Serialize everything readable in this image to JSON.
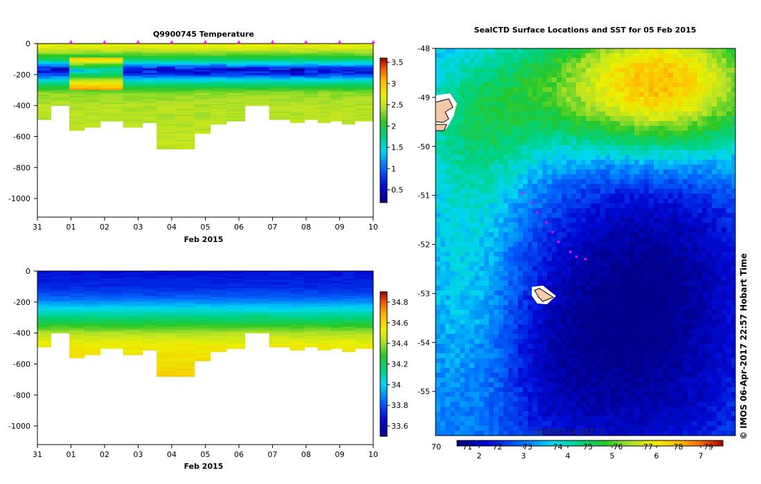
{
  "credit": "© IMOS 06-Apr-2017 22:57 Hobart Time",
  "chart_data": [
    {
      "type": "heatmap",
      "name": "temperature-section",
      "title": "Q9900745  Temperature",
      "xlabel": "Feb 2015",
      "ylabel": "",
      "x_ticks": [
        "31",
        "01",
        "02",
        "03",
        "04",
        "05",
        "06",
        "07",
        "08",
        "09",
        "10"
      ],
      "x_range_days": [
        0,
        10
      ],
      "y_ticks": [
        "0",
        "-200",
        "-400",
        "-600",
        "-800",
        "-1000"
      ],
      "y_tick_values": [
        0,
        -200,
        -400,
        -600,
        -800,
        -1000
      ],
      "ylim": [
        -1120,
        0
      ],
      "colorbar_ticks": [
        "0.5",
        "1",
        "1.5",
        "2",
        "2.5",
        "3",
        "3.5"
      ],
      "colorbar_tick_values": [
        0.5,
        1,
        1.5,
        2,
        2.5,
        3,
        3.5
      ],
      "colorbar_range": [
        0.2,
        3.6
      ],
      "profile_markers_day": [
        1.0,
        2.0,
        3.0,
        4.0,
        5.0,
        6.0,
        7.0,
        8.0,
        9.0,
        10.0
      ],
      "profiles": [
        {
          "day": 0.15,
          "bottom": -490
        },
        {
          "day": 0.65,
          "bottom": -400
        },
        {
          "day": 1.25,
          "bottom": -560
        },
        {
          "day": 1.55,
          "bottom": -540
        },
        {
          "day": 2.2,
          "bottom": -500
        },
        {
          "day": 2.9,
          "bottom": -540
        },
        {
          "day": 3.35,
          "bottom": -510
        },
        {
          "day": 3.75,
          "bottom": -680
        },
        {
          "day": 4.45,
          "bottom": -680
        },
        {
          "day": 4.9,
          "bottom": -580
        },
        {
          "day": 5.4,
          "bottom": -520
        },
        {
          "day": 5.85,
          "bottom": -500
        },
        {
          "day": 6.5,
          "bottom": -400
        },
        {
          "day": 7.3,
          "bottom": -490
        },
        {
          "day": 7.75,
          "bottom": -510
        },
        {
          "day": 8.15,
          "bottom": -490
        },
        {
          "day": 8.55,
          "bottom": -510
        },
        {
          "day": 8.9,
          "bottom": -500
        },
        {
          "day": 9.25,
          "bottom": -520
        },
        {
          "day": 9.65,
          "bottom": -500
        }
      ],
      "depth_profile": [
        {
          "depth": 0,
          "value": 2.6
        },
        {
          "depth": -20,
          "value": 2.7
        },
        {
          "depth": -60,
          "value": 2.35
        },
        {
          "depth": -100,
          "value": 1.9
        },
        {
          "depth": -140,
          "value": 1.2
        },
        {
          "depth": -170,
          "value": 0.5
        },
        {
          "depth": -200,
          "value": 0.8
        },
        {
          "depth": -230,
          "value": 1.4
        },
        {
          "depth": -270,
          "value": 1.9
        },
        {
          "depth": -320,
          "value": 2.35
        },
        {
          "depth": -400,
          "value": 2.45
        },
        {
          "depth": -700,
          "value": 2.5
        }
      ]
    },
    {
      "type": "heatmap",
      "name": "salinity-section",
      "title": "",
      "xlabel": "Feb 2015",
      "ylabel": "",
      "x_ticks": [
        "31",
        "01",
        "02",
        "03",
        "04",
        "05",
        "06",
        "07",
        "08",
        "09",
        "10"
      ],
      "x_range_days": [
        0,
        10
      ],
      "y_ticks": [
        "0",
        "-200",
        "-400",
        "-600",
        "-800",
        "-1000"
      ],
      "y_tick_values": [
        0,
        -200,
        -400,
        -600,
        -800,
        -1000
      ],
      "ylim": [
        -1120,
        0
      ],
      "colorbar_ticks": [
        "33.6",
        "33.8",
        "34",
        "34.2",
        "34.4",
        "34.6",
        "34.8"
      ],
      "colorbar_tick_values": [
        33.6,
        33.8,
        34.0,
        34.2,
        34.4,
        34.6,
        34.8
      ],
      "colorbar_range": [
        33.5,
        34.9
      ],
      "depth_profile": [
        {
          "depth": 0,
          "value": 33.68
        },
        {
          "depth": -100,
          "value": 33.72
        },
        {
          "depth": -160,
          "value": 33.8
        },
        {
          "depth": -220,
          "value": 33.95
        },
        {
          "depth": -280,
          "value": 34.1
        },
        {
          "depth": -340,
          "value": 34.25
        },
        {
          "depth": -400,
          "value": 34.42
        },
        {
          "depth": -480,
          "value": 34.55
        },
        {
          "depth": -700,
          "value": 34.62
        }
      ]
    },
    {
      "type": "heatmap",
      "name": "sst-map",
      "title": "SealCTD Surface Locations and SST for 05 Feb 2015",
      "y_ticks": [
        "-48",
        "-49",
        "-50",
        "-51",
        "-52",
        "-53",
        "-54",
        "-55"
      ],
      "y_tick_values": [
        -48,
        -49,
        -50,
        -51,
        -52,
        -53,
        -54,
        -55
      ],
      "ylim": [
        -55.9,
        -48
      ],
      "colorbar_label": "GHRSST L4 SST °C",
      "colorbar_ticks_top": [
        "70",
        "71",
        "72",
        "73",
        "74",
        "75",
        "76",
        "77",
        "78",
        "79"
      ],
      "colorbar_ticks_bottom": [
        "2",
        "3",
        "4",
        "5",
        "6",
        "7"
      ],
      "colorbar_range": [
        1.5,
        7.5
      ],
      "track_lat": [
        -50.95,
        -51.15,
        -51.35,
        -51.55,
        -51.75,
        -51.95,
        -52.15,
        -52.25,
        -52.3
      ],
      "track_lon_frac": [
        0.29,
        0.32,
        0.34,
        0.37,
        0.39,
        0.41,
        0.45,
        0.47,
        0.5
      ]
    }
  ]
}
